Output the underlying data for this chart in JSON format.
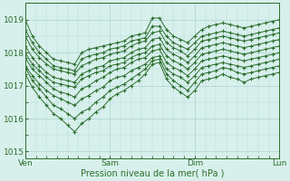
{
  "xlabel": "Pression niveau de la mer( hPa )",
  "bg_color": "#d8f0ec",
  "grid_color": "#b0d8d4",
  "line_color": "#2d6e2d",
  "ylim": [
    1014.8,
    1019.5
  ],
  "yticks": [
    1015,
    1016,
    1017,
    1018,
    1019
  ],
  "xtick_labels": [
    "Ven",
    "Sam",
    "Dim",
    "Lun"
  ],
  "xtick_positions": [
    0,
    1,
    2,
    3
  ],
  "series": [
    [
      1019.0,
      1018.5,
      1018.2,
      1018.0,
      1017.8,
      1017.75,
      1017.7,
      1017.65,
      1018.0,
      1018.1,
      1018.15,
      1018.2,
      1018.25,
      1018.3,
      1018.35,
      1018.5,
      1018.55,
      1018.6,
      1019.05,
      1019.05,
      1018.7,
      1018.5,
      1018.4,
      1018.3,
      1018.5,
      1018.7,
      1018.8,
      1018.85,
      1018.9,
      1018.85,
      1018.8,
      1018.75,
      1018.8,
      1018.85,
      1018.9,
      1018.95,
      1019.0
    ],
    [
      1018.7,
      1018.3,
      1018.0,
      1017.8,
      1017.6,
      1017.55,
      1017.5,
      1017.45,
      1017.8,
      1017.9,
      1017.95,
      1018.0,
      1018.1,
      1018.15,
      1018.2,
      1018.35,
      1018.4,
      1018.45,
      1018.8,
      1018.8,
      1018.5,
      1018.3,
      1018.2,
      1018.1,
      1018.3,
      1018.5,
      1018.55,
      1018.6,
      1018.65,
      1018.6,
      1018.55,
      1018.5,
      1018.55,
      1018.6,
      1018.65,
      1018.7,
      1018.75
    ],
    [
      1018.5,
      1018.1,
      1017.85,
      1017.65,
      1017.5,
      1017.45,
      1017.4,
      1017.35,
      1017.6,
      1017.7,
      1017.8,
      1017.85,
      1017.95,
      1018.0,
      1018.05,
      1018.2,
      1018.3,
      1018.35,
      1018.6,
      1018.65,
      1018.3,
      1018.15,
      1018.05,
      1017.9,
      1018.1,
      1018.35,
      1018.4,
      1018.45,
      1018.5,
      1018.45,
      1018.4,
      1018.35,
      1018.4,
      1018.45,
      1018.5,
      1018.55,
      1018.6
    ],
    [
      1018.2,
      1017.85,
      1017.6,
      1017.4,
      1017.25,
      1017.2,
      1017.15,
      1017.1,
      1017.35,
      1017.45,
      1017.55,
      1017.6,
      1017.75,
      1017.8,
      1017.85,
      1018.0,
      1018.1,
      1018.15,
      1018.4,
      1018.45,
      1018.1,
      1017.95,
      1017.85,
      1017.7,
      1017.9,
      1018.15,
      1018.2,
      1018.25,
      1018.3,
      1018.25,
      1018.2,
      1018.15,
      1018.2,
      1018.25,
      1018.3,
      1018.35,
      1018.4
    ],
    [
      1018.0,
      1017.65,
      1017.45,
      1017.25,
      1017.1,
      1017.05,
      1017.0,
      1016.95,
      1017.2,
      1017.3,
      1017.4,
      1017.45,
      1017.6,
      1017.65,
      1017.7,
      1017.85,
      1017.95,
      1018.0,
      1018.2,
      1018.25,
      1017.9,
      1017.75,
      1017.65,
      1017.5,
      1017.7,
      1017.95,
      1018.0,
      1018.05,
      1018.1,
      1018.05,
      1018.0,
      1017.95,
      1018.0,
      1018.05,
      1018.1,
      1018.15,
      1018.2
    ],
    [
      1017.85,
      1017.5,
      1017.3,
      1017.1,
      1016.9,
      1016.8,
      1016.75,
      1016.65,
      1016.9,
      1017.0,
      1017.15,
      1017.25,
      1017.4,
      1017.5,
      1017.55,
      1017.7,
      1017.8,
      1017.85,
      1018.05,
      1018.1,
      1017.7,
      1017.55,
      1017.45,
      1017.3,
      1017.5,
      1017.75,
      1017.8,
      1017.85,
      1017.9,
      1017.85,
      1017.8,
      1017.75,
      1017.8,
      1017.85,
      1017.9,
      1017.95,
      1018.0
    ],
    [
      1017.6,
      1017.3,
      1017.05,
      1016.85,
      1016.7,
      1016.6,
      1016.5,
      1016.4,
      1016.6,
      1016.7,
      1016.85,
      1016.95,
      1017.15,
      1017.25,
      1017.3,
      1017.45,
      1017.55,
      1017.65,
      1017.85,
      1017.9,
      1017.5,
      1017.35,
      1017.25,
      1017.1,
      1017.3,
      1017.55,
      1017.6,
      1017.65,
      1017.7,
      1017.65,
      1017.6,
      1017.55,
      1017.6,
      1017.65,
      1017.7,
      1017.75,
      1017.8
    ],
    [
      1017.55,
      1017.15,
      1016.9,
      1016.65,
      1016.4,
      1016.3,
      1016.15,
      1016.0,
      1016.2,
      1016.3,
      1016.5,
      1016.65,
      1016.85,
      1016.95,
      1017.05,
      1017.2,
      1017.35,
      1017.5,
      1017.75,
      1017.8,
      1017.35,
      1017.15,
      1017.0,
      1016.85,
      1017.1,
      1017.35,
      1017.4,
      1017.45,
      1017.55,
      1017.5,
      1017.4,
      1017.35,
      1017.4,
      1017.45,
      1017.5,
      1017.55,
      1017.6
    ],
    [
      1017.35,
      1016.95,
      1016.65,
      1016.4,
      1016.15,
      1016.0,
      1015.8,
      1015.6,
      1015.85,
      1016.0,
      1016.2,
      1016.35,
      1016.6,
      1016.75,
      1016.85,
      1017.0,
      1017.15,
      1017.35,
      1017.65,
      1017.7,
      1017.2,
      1016.95,
      1016.8,
      1016.65,
      1016.85,
      1017.15,
      1017.2,
      1017.25,
      1017.35,
      1017.25,
      1017.2,
      1017.1,
      1017.2,
      1017.25,
      1017.3,
      1017.35,
      1017.4
    ]
  ]
}
